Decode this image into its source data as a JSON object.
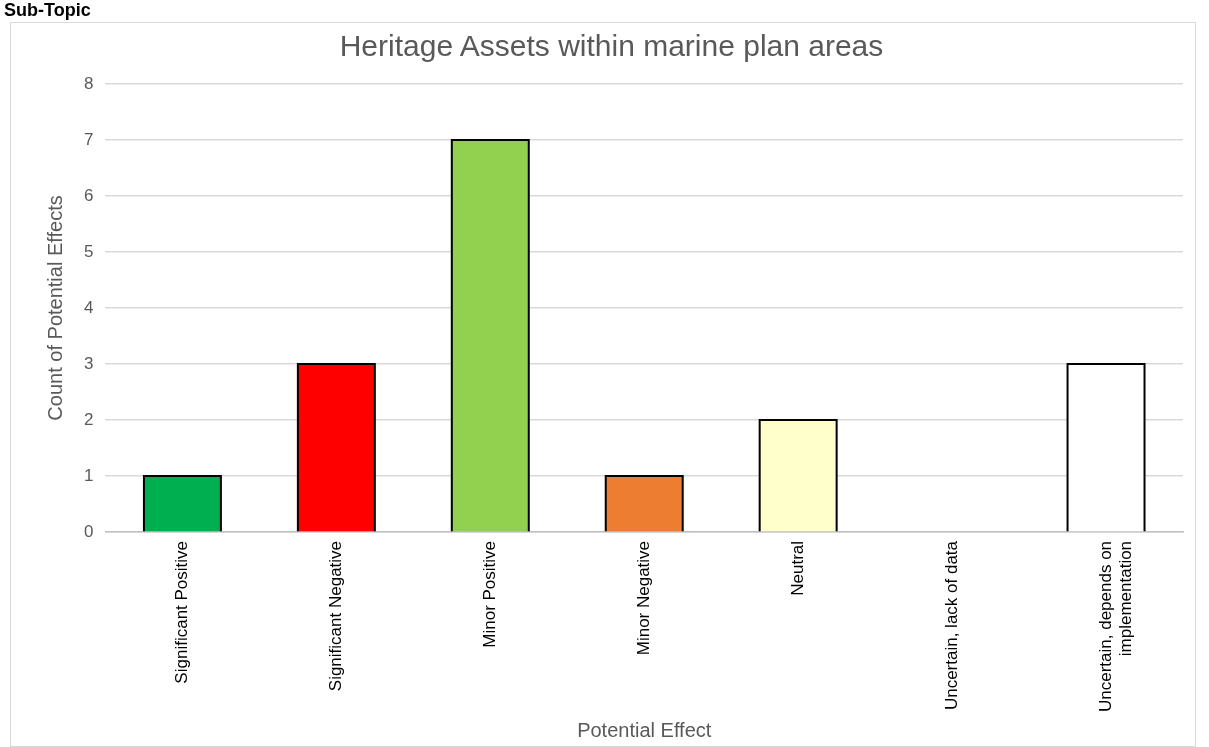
{
  "chart_data": {
    "type": "bar",
    "title": "Heritage Assets within marine plan areas",
    "xlabel": "Potential Effect",
    "ylabel": "Count of Potential Effects",
    "categories": [
      "Significant Positive",
      "Significant Negative",
      "Minor Positive",
      "Minor Negative",
      "Neutral",
      "Uncertain, lack of data",
      "Uncertain, depends on implementation"
    ],
    "values": [
      1,
      3,
      7,
      1,
      2,
      0,
      3
    ],
    "colors": [
      "#00b050",
      "#ff0000",
      "#92d050",
      "#ed7d31",
      "#ffffcc",
      "#ffffff",
      "#ffffff"
    ],
    "ylim": [
      0,
      8
    ],
    "yticks": [
      0,
      1,
      2,
      3,
      4,
      5,
      6,
      7,
      8
    ],
    "grid": "y",
    "legend": false,
    "annotations": [
      "Sub-Topic"
    ]
  }
}
